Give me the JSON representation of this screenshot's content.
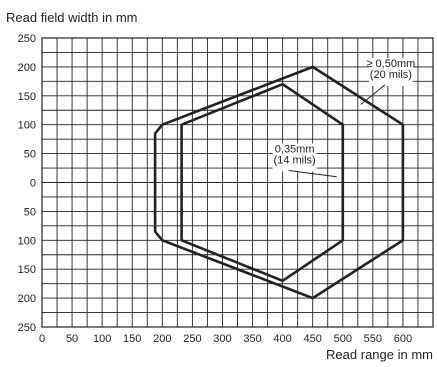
{
  "chart_data": {
    "type": "line",
    "title": "",
    "ylabel": "Read field width in mm",
    "xlabel": "Read range in mm",
    "xlim": [
      0,
      650
    ],
    "ylim": [
      -250,
      250
    ],
    "x_ticks": [
      0,
      50,
      100,
      150,
      200,
      250,
      300,
      350,
      400,
      450,
      500,
      550,
      600
    ],
    "y_ticks": [
      250,
      200,
      150,
      100,
      50,
      0,
      -50,
      -100,
      -150,
      -200,
      -250
    ],
    "y_tick_labels": [
      "250",
      "200",
      "150",
      "100",
      "50",
      "0",
      "50",
      "100",
      "150",
      "200",
      "250"
    ],
    "grid": true,
    "series": [
      {
        "name": "≥ 0,50mm (20 mils)",
        "points": [
          [
            200,
            100
          ],
          [
            450,
            200
          ],
          [
            600,
            100
          ],
          [
            600,
            -100
          ],
          [
            450,
            -200
          ],
          [
            200,
            -100
          ],
          [
            188,
            -85
          ],
          [
            188,
            85
          ],
          [
            200,
            100
          ]
        ]
      },
      {
        "name": "0,35mm (14 mils)",
        "points": [
          [
            232,
            100
          ],
          [
            400,
            170
          ],
          [
            500,
            100
          ],
          [
            500,
            -100
          ],
          [
            400,
            -170
          ],
          [
            232,
            -100
          ],
          [
            232,
            100
          ]
        ]
      }
    ],
    "annotations": [
      {
        "lines": [
          "≥ 0,50mm",
          "(20 mils)"
        ],
        "x": 580,
        "y": 200,
        "line_to": [
          530,
          135
        ]
      },
      {
        "lines": [
          "0,35mm",
          "(14 mils)"
        ],
        "x": 420,
        "y": 52,
        "line_to": [
          490,
          10
        ]
      }
    ]
  }
}
